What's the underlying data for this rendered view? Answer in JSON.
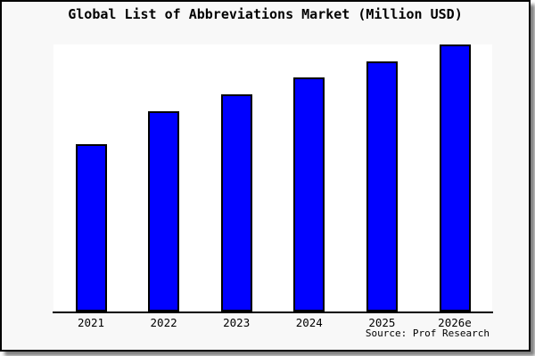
{
  "chart_data": {
    "type": "bar",
    "title": "Global List of Abbreviations Market (Million USD)",
    "categories": [
      "2021",
      "2022",
      "2023",
      "2024",
      "2025",
      "2026e"
    ],
    "values": [
      62.7,
      75.0,
      81.3,
      87.7,
      93.7,
      100
    ],
    "ylim": [
      0,
      100
    ],
    "xlabel": "",
    "ylabel": "",
    "grid": false,
    "legend": false,
    "y_axis_ticks_visible": false,
    "bar_color": "#0000ff",
    "bar_border_color": "#000000",
    "axis_color": "#000000",
    "plot_bg": "#ffffff",
    "page_bg": "#f8f8f8",
    "title_color": "#000000"
  },
  "source": {
    "label": "Source: Prof Research"
  }
}
